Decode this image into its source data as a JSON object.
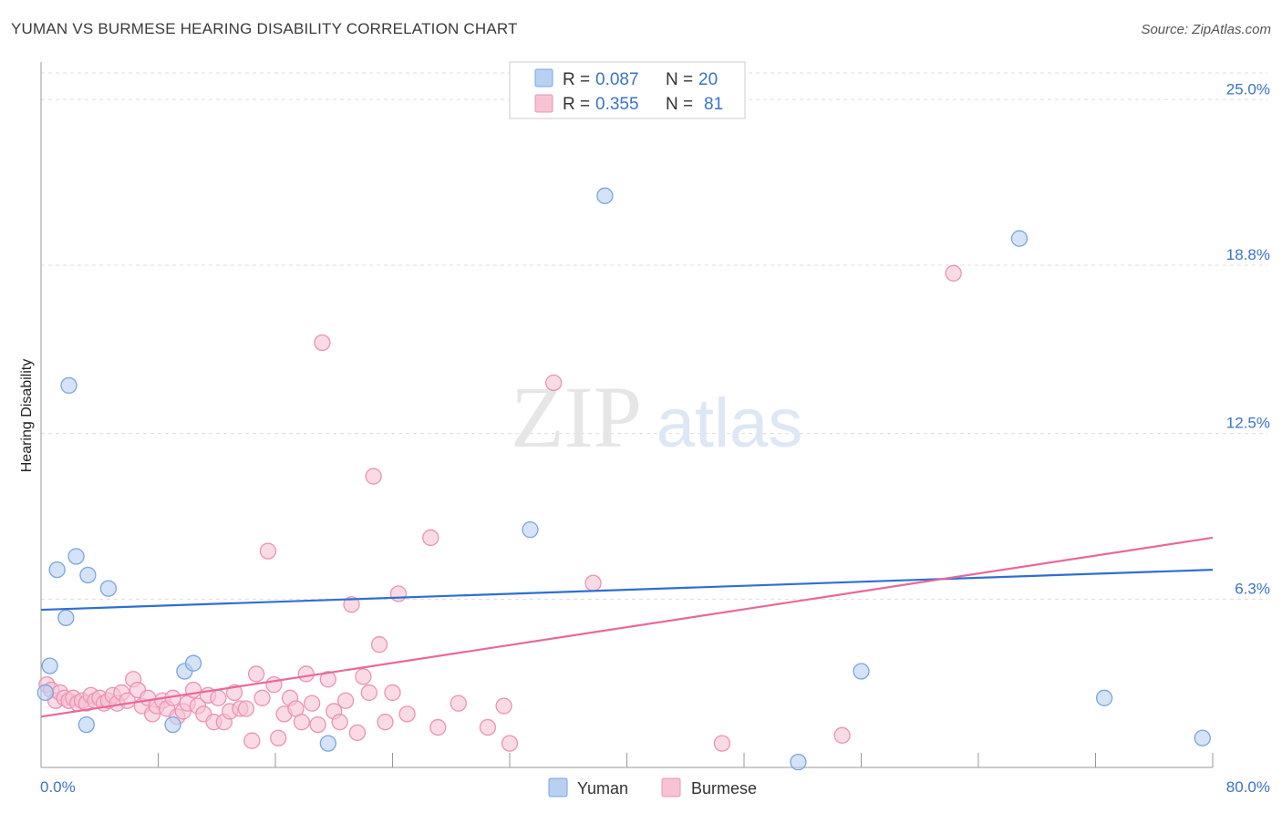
{
  "title": "YUMAN VS BURMESE HEARING DISABILITY CORRELATION CHART",
  "source": "Source: ZipAtlas.com",
  "watermark": {
    "zip": "ZIP",
    "atlas": "atlas"
  },
  "colors": {
    "yuman_fill": "#b8d0f2",
    "yuman_stroke": "#7aa5df",
    "yuman_line": "#2f6fd1",
    "burmese_fill": "#f7c3d3",
    "burmese_stroke": "#ec93b0",
    "burmese_line": "#e8689a",
    "grid": "#dddddd",
    "tick_label": "#3a73c9"
  },
  "legend": {
    "r_label": "R =",
    "n_label": "N =",
    "entries": [
      {
        "series": "Yuman",
        "r": "0.087",
        "n": "20"
      },
      {
        "series": "Burmese",
        "r": "0.355",
        "n": "81"
      }
    ]
  },
  "chart_data": {
    "type": "scatter",
    "title": "YUMAN VS BURMESE HEARING DISABILITY CORRELATION CHART",
    "xlabel": "",
    "ylabel": "Hearing Disability",
    "xlim": [
      0,
      80
    ],
    "ylim": [
      0,
      26
    ],
    "x_tick_labels": [
      "0.0%",
      "80.0%"
    ],
    "y_ticks": [
      6.3,
      12.5,
      18.8,
      25.0
    ],
    "y_tick_labels": [
      "6.3%",
      "12.5%",
      "18.8%",
      "25.0%"
    ],
    "grid": true,
    "legend_position": "top-center",
    "series": [
      {
        "name": "Yuman",
        "color": "#b8d0f2",
        "trend": {
          "x": [
            0,
            80
          ],
          "y": [
            5.9,
            7.4
          ]
        },
        "points": [
          {
            "x": 0.3,
            "y": 2.8
          },
          {
            "x": 0.6,
            "y": 3.8
          },
          {
            "x": 1.1,
            "y": 7.4
          },
          {
            "x": 1.7,
            "y": 5.6
          },
          {
            "x": 1.9,
            "y": 14.3
          },
          {
            "x": 2.4,
            "y": 7.9
          },
          {
            "x": 3.1,
            "y": 1.6
          },
          {
            "x": 3.2,
            "y": 7.2
          },
          {
            "x": 4.6,
            "y": 6.7
          },
          {
            "x": 9.0,
            "y": 1.6
          },
          {
            "x": 9.8,
            "y": 3.6
          },
          {
            "x": 10.4,
            "y": 3.9
          },
          {
            "x": 19.6,
            "y": 0.9
          },
          {
            "x": 33.4,
            "y": 8.9
          },
          {
            "x": 38.5,
            "y": 21.4
          },
          {
            "x": 51.7,
            "y": 0.2
          },
          {
            "x": 56.0,
            "y": 3.6
          },
          {
            "x": 66.8,
            "y": 19.8
          },
          {
            "x": 72.6,
            "y": 2.6
          },
          {
            "x": 79.3,
            "y": 1.1
          }
        ]
      },
      {
        "name": "Burmese",
        "color": "#f7c3d3",
        "trend": {
          "x": [
            0,
            80
          ],
          "y": [
            1.9,
            8.6
          ]
        },
        "points": [
          {
            "x": 0.4,
            "y": 3.1
          },
          {
            "x": 0.7,
            "y": 2.9
          },
          {
            "x": 1.0,
            "y": 2.5
          },
          {
            "x": 1.3,
            "y": 2.8
          },
          {
            "x": 1.6,
            "y": 2.6
          },
          {
            "x": 1.9,
            "y": 2.5
          },
          {
            "x": 2.2,
            "y": 2.6
          },
          {
            "x": 2.5,
            "y": 2.4
          },
          {
            "x": 2.8,
            "y": 2.5
          },
          {
            "x": 3.1,
            "y": 2.4
          },
          {
            "x": 3.4,
            "y": 2.7
          },
          {
            "x": 3.7,
            "y": 2.5
          },
          {
            "x": 4.0,
            "y": 2.6
          },
          {
            "x": 4.3,
            "y": 2.4
          },
          {
            "x": 4.6,
            "y": 2.5
          },
          {
            "x": 4.9,
            "y": 2.7
          },
          {
            "x": 5.2,
            "y": 2.4
          },
          {
            "x": 5.5,
            "y": 2.8
          },
          {
            "x": 5.9,
            "y": 2.5
          },
          {
            "x": 6.3,
            "y": 3.3
          },
          {
            "x": 6.6,
            "y": 2.9
          },
          {
            "x": 6.9,
            "y": 2.3
          },
          {
            "x": 7.3,
            "y": 2.6
          },
          {
            "x": 7.6,
            "y": 2.0
          },
          {
            "x": 7.9,
            "y": 2.3
          },
          {
            "x": 8.3,
            "y": 2.5
          },
          {
            "x": 8.6,
            "y": 2.2
          },
          {
            "x": 9.0,
            "y": 2.6
          },
          {
            "x": 9.3,
            "y": 1.9
          },
          {
            "x": 9.7,
            "y": 2.1
          },
          {
            "x": 10.0,
            "y": 2.4
          },
          {
            "x": 10.4,
            "y": 2.9
          },
          {
            "x": 10.7,
            "y": 2.3
          },
          {
            "x": 11.1,
            "y": 2.0
          },
          {
            "x": 11.4,
            "y": 2.7
          },
          {
            "x": 11.8,
            "y": 1.7
          },
          {
            "x": 12.1,
            "y": 2.6
          },
          {
            "x": 12.5,
            "y": 1.7
          },
          {
            "x": 12.9,
            "y": 2.1
          },
          {
            "x": 13.2,
            "y": 2.8
          },
          {
            "x": 13.6,
            "y": 2.2
          },
          {
            "x": 14.0,
            "y": 2.2
          },
          {
            "x": 14.4,
            "y": 1.0
          },
          {
            "x": 14.7,
            "y": 3.5
          },
          {
            "x": 15.1,
            "y": 2.6
          },
          {
            "x": 15.5,
            "y": 8.1
          },
          {
            "x": 15.9,
            "y": 3.1
          },
          {
            "x": 16.2,
            "y": 1.1
          },
          {
            "x": 16.6,
            "y": 2.0
          },
          {
            "x": 17.0,
            "y": 2.6
          },
          {
            "x": 17.4,
            "y": 2.2
          },
          {
            "x": 17.8,
            "y": 1.7
          },
          {
            "x": 18.1,
            "y": 3.5
          },
          {
            "x": 18.5,
            "y": 2.4
          },
          {
            "x": 18.9,
            "y": 1.6
          },
          {
            "x": 19.2,
            "y": 15.9
          },
          {
            "x": 19.6,
            "y": 3.3
          },
          {
            "x": 20.0,
            "y": 2.1
          },
          {
            "x": 20.4,
            "y": 1.7
          },
          {
            "x": 20.8,
            "y": 2.5
          },
          {
            "x": 21.2,
            "y": 6.1
          },
          {
            "x": 21.6,
            "y": 1.3
          },
          {
            "x": 22.0,
            "y": 3.4
          },
          {
            "x": 22.4,
            "y": 2.8
          },
          {
            "x": 22.7,
            "y": 10.9
          },
          {
            "x": 23.1,
            "y": 4.6
          },
          {
            "x": 23.5,
            "y": 1.7
          },
          {
            "x": 24.0,
            "y": 2.8
          },
          {
            "x": 24.4,
            "y": 6.5
          },
          {
            "x": 25.0,
            "y": 2.0
          },
          {
            "x": 26.6,
            "y": 8.6
          },
          {
            "x": 27.1,
            "y": 1.5
          },
          {
            "x": 28.5,
            "y": 2.4
          },
          {
            "x": 30.5,
            "y": 1.5
          },
          {
            "x": 31.6,
            "y": 2.3
          },
          {
            "x": 32.0,
            "y": 0.9
          },
          {
            "x": 37.7,
            "y": 6.9
          },
          {
            "x": 46.5,
            "y": 0.9
          },
          {
            "x": 54.7,
            "y": 1.2
          },
          {
            "x": 62.3,
            "y": 18.5
          },
          {
            "x": 35.0,
            "y": 14.4
          }
        ]
      }
    ]
  }
}
